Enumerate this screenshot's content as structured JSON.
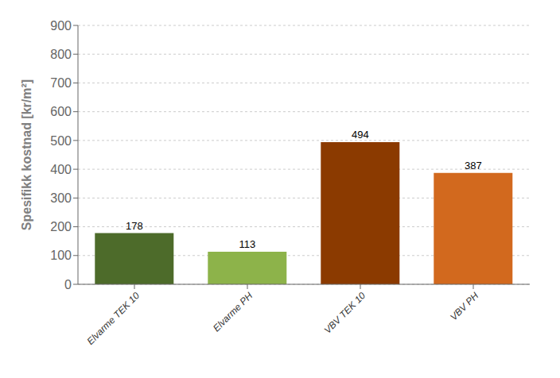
{
  "chart_data": {
    "type": "bar",
    "categories": [
      "Elvarme TEK 10",
      "Elvarme PH",
      "VBV TEK 10",
      "VBV PH"
    ],
    "values": [
      178,
      113,
      494,
      387
    ],
    "colors": [
      "#4d6b2a",
      "#8db34a",
      "#8b3a00",
      "#d2691e"
    ],
    "ylabel": "Spesifikk kostnad [kr/m²]",
    "ylim": [
      0,
      900
    ],
    "yticks": [
      0,
      100,
      200,
      300,
      400,
      500,
      600,
      700,
      800,
      900
    ],
    "grid": true,
    "data_labels": true
  }
}
